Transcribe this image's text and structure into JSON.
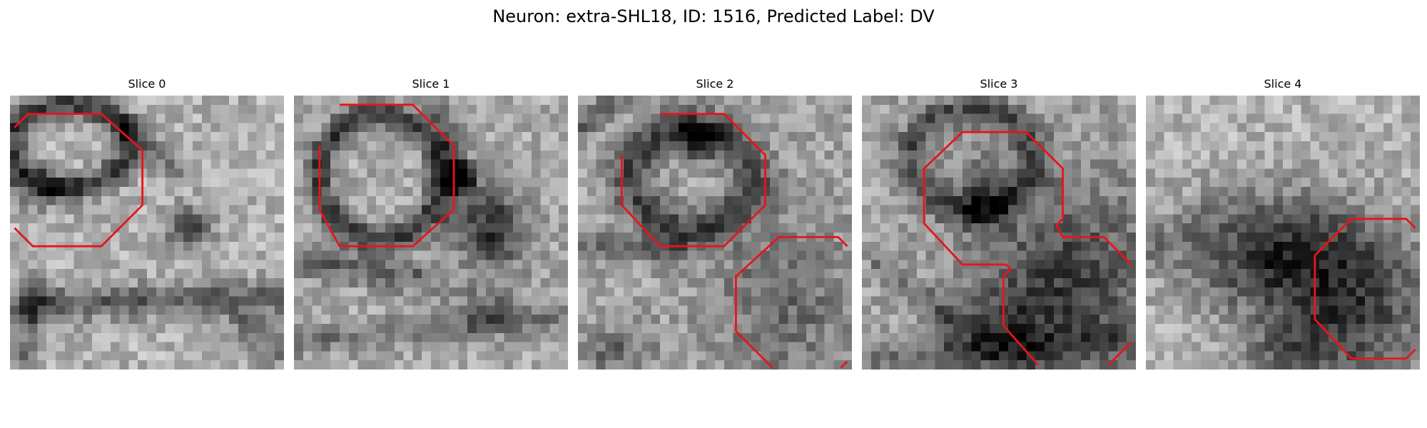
{
  "figure": {
    "title": "Neuron: extra-SHL18, ID: 1516, Predicted Label: DV"
  },
  "style": {
    "contour_color": "#e8141a",
    "image_colormap": "gray"
  },
  "panels": [
    {
      "title": "Slice 0"
    },
    {
      "title": "Slice 1"
    },
    {
      "title": "Slice 2"
    },
    {
      "title": "Slice 3"
    },
    {
      "title": "Slice 4"
    }
  ]
}
